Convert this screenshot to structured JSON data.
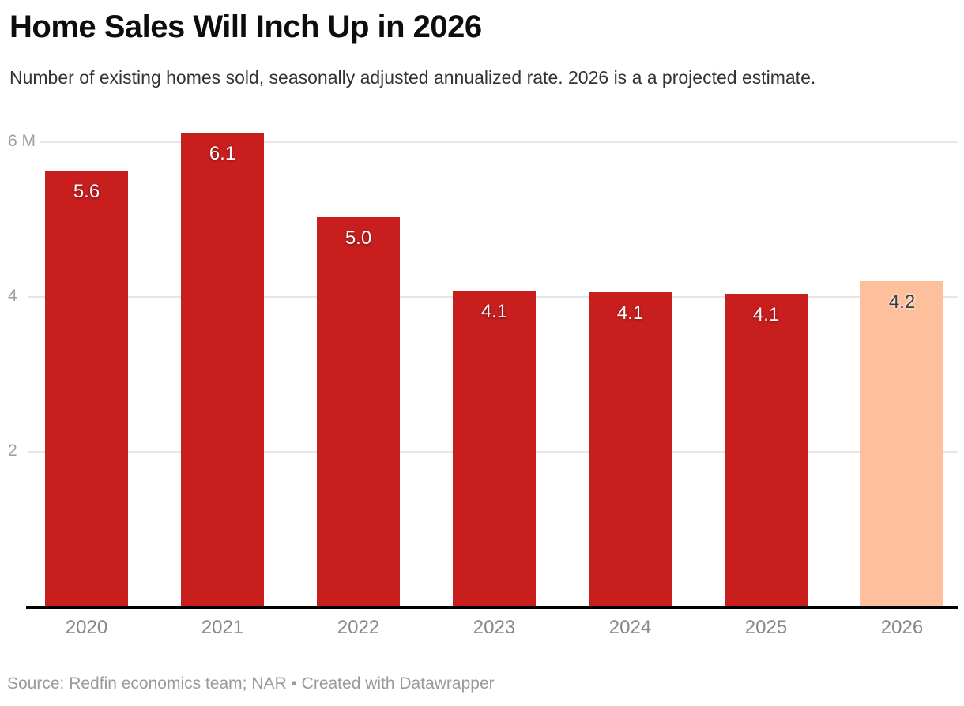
{
  "title": "Home Sales Will Inch Up in 2026",
  "subtitle": "Number of existing homes sold, seasonally adjusted annualized rate. 2026 is a a projected estimate.",
  "footer": "Source: Redfin economics team; NAR • Created with Datawrapper",
  "chart_data": {
    "type": "bar",
    "title": "Home Sales Will Inch Up in 2026",
    "subtitle": "Number of existing homes sold, seasonally adjusted annualized rate. 2026 is a a projected estimate.",
    "categories": [
      "2020",
      "2021",
      "2022",
      "2023",
      "2024",
      "2025",
      "2026"
    ],
    "values": [
      5.6,
      6.1,
      5.0,
      4.1,
      4.1,
      4.1,
      4.2
    ],
    "value_labels": [
      "5.6",
      "6.1",
      "5.0",
      "4.1",
      "4.1",
      "4.1",
      "4.2"
    ],
    "precise_values": [
      5.63,
      6.12,
      5.03,
      4.08,
      4.06,
      4.04,
      4.2
    ],
    "unit": "M",
    "xlabel": "",
    "ylabel": "",
    "ylim": [
      0,
      6.2
    ],
    "grid": true,
    "legend": "none",
    "y_ticks": [
      {
        "value": 6,
        "label": "6 M"
      },
      {
        "value": 4,
        "label": "4"
      },
      {
        "value": 2,
        "label": "2"
      }
    ],
    "bar_color": "#c81e1e",
    "highlight_index": 6,
    "highlight_color": "#fdbf9c",
    "source_note": "Source: Redfin economics team; NAR",
    "attribution": "Created with Datawrapper"
  },
  "colors": {
    "title_text": "#0d0d0d",
    "subtitle_text": "#333333",
    "axis_label_text": "#9e9e9e",
    "x_label_text": "#878787",
    "footer_text": "#9a9a9a",
    "gridline": "#e7e7e7",
    "baseline": "#000000",
    "bar_red": "#c81e1e",
    "bar_peach": "#fdbf9c",
    "value_label_light": "#ffffff",
    "value_label_dark": "#3d3d3d"
  }
}
